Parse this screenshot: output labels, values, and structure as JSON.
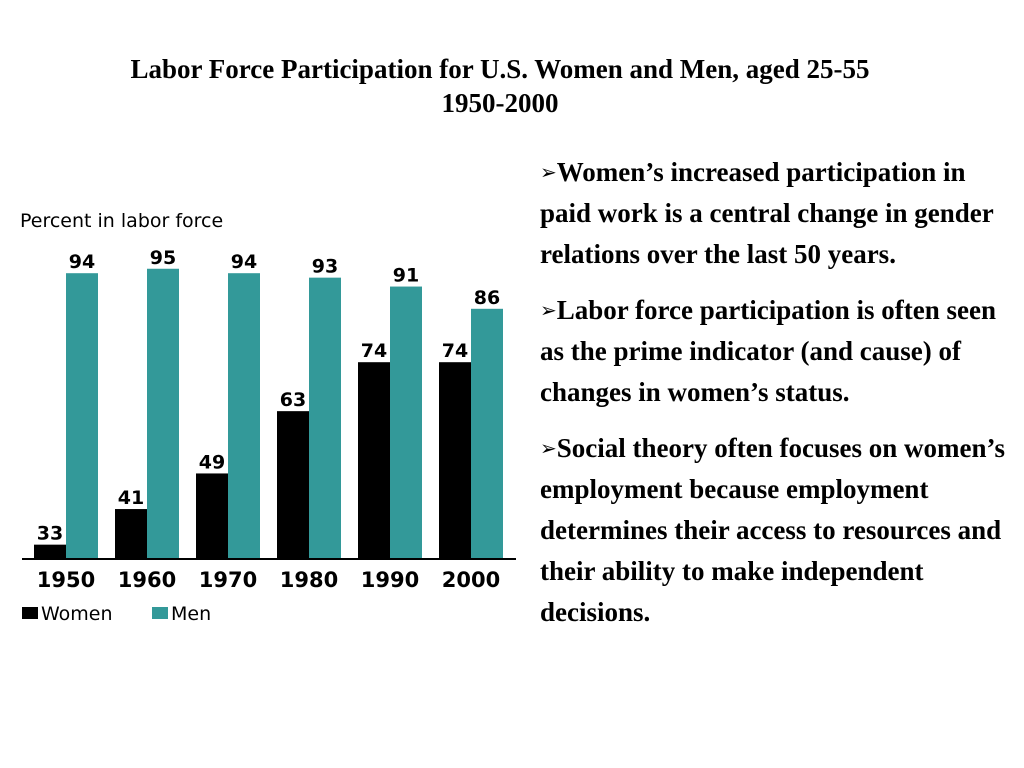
{
  "title": {
    "line1": "Labor Force Participation for U.S. Women and Men, aged 25-55",
    "line2": "1950-2000"
  },
  "chart_data": {
    "type": "bar",
    "ylabel": "Percent in labor force",
    "categories": [
      "1950",
      "1960",
      "1970",
      "1980",
      "1990",
      "2000"
    ],
    "series": [
      {
        "name": "Women",
        "values": [
          33,
          41,
          49,
          63,
          74,
          74
        ],
        "color": "#000000"
      },
      {
        "name": "Men",
        "values": [
          94,
          95,
          94,
          93,
          91,
          86
        ],
        "color": "#339999"
      }
    ],
    "ylim": [
      30,
      100
    ],
    "grid": false,
    "legend": "bottom-left"
  },
  "bullets": [
    {
      "arrow": "➢",
      "text": "Women’s increased participation in paid work is a central change in gender relations over the last 50 years."
    },
    {
      "arrow": "➢",
      "text": "Labor force participation is often seen as the prime indicator (and cause) of changes in women’s status."
    },
    {
      "arrow": "➢",
      "text": "Social theory often focuses on women’s employment because employment determines their access to resources and their ability to make independent decisions."
    }
  ]
}
